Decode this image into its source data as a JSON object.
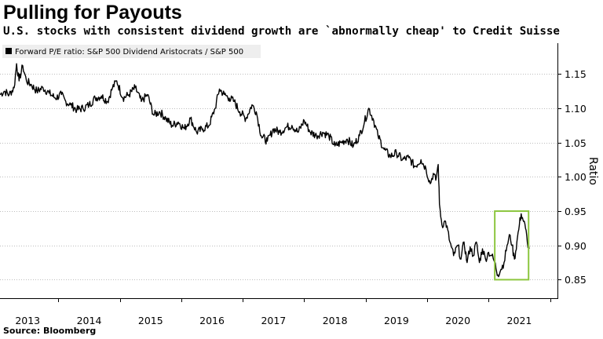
{
  "header": {
    "title": "Pulling for Payouts",
    "subtitle": "U.S. stocks with consistent dividend growth are `abnormally cheap' to Credit Suisse"
  },
  "footer": {
    "source": "Source: Bloomberg"
  },
  "colors": {
    "line": "#000000",
    "highlight_box": "#8cc63f",
    "grid": "#bdbdbd",
    "legend_bg": "#eeeeee"
  },
  "chart_data": {
    "type": "line",
    "title": "Pulling for Payouts",
    "subtitle": "U.S. stocks with consistent dividend growth are `abnormally cheap' to Credit Suisse",
    "xlabel": "",
    "ylabel": "Ratio",
    "y_axis_side": "right",
    "legend": [
      "Forward P/E ratio: S&P 500 Dividend Aristocrats / S&P 500"
    ],
    "legend_position": "top-left",
    "grid": "horizontal dotted",
    "xlim": [
      2012.55,
      2021.62
    ],
    "ylim": [
      0.823,
      1.195
    ],
    "x_tick_labels": [
      "2013",
      "2014",
      "2015",
      "2016",
      "2017",
      "2018",
      "2019",
      "2020",
      "2021"
    ],
    "x_tick_label_positions": [
      2013.0,
      2014.0,
      2015.0,
      2016.0,
      2017.0,
      2018.0,
      2019.0,
      2020.0,
      2021.0
    ],
    "x_tick_marks": [
      2013.5,
      2014.5,
      2015.5,
      2016.5,
      2017.5,
      2018.5,
      2019.5,
      2020.5,
      2021.5
    ],
    "y_ticks": [
      0.85,
      0.9,
      0.95,
      1.0,
      1.05,
      1.1,
      1.15
    ],
    "y_tick_labels": [
      "0.85",
      "0.90",
      "0.95",
      "1.00",
      "1.05",
      "1.10",
      "1.15"
    ],
    "highlight_box": {
      "x_range": [
        2020.6,
        2021.15
      ],
      "y_range": [
        0.85,
        0.95
      ]
    },
    "series": [
      {
        "name": "Forward P/E ratio: S&P 500 Dividend Aristocrats / S&P 500",
        "x": [
          2012.55,
          2012.62,
          2012.7,
          2012.78,
          2012.82,
          2012.86,
          2012.92,
          2012.98,
          2013.05,
          2013.15,
          2013.25,
          2013.35,
          2013.45,
          2013.55,
          2013.62,
          2013.7,
          2013.8,
          2013.9,
          2014.0,
          2014.1,
          2014.2,
          2014.3,
          2014.38,
          2014.45,
          2014.55,
          2014.65,
          2014.75,
          2014.85,
          2014.95,
          2015.05,
          2015.15,
          2015.25,
          2015.35,
          2015.45,
          2015.55,
          2015.65,
          2015.75,
          2015.85,
          2015.95,
          2016.05,
          2016.12,
          2016.2,
          2016.28,
          2016.36,
          2016.45,
          2016.55,
          2016.65,
          2016.72,
          2016.8,
          2016.9,
          2017.0,
          2017.1,
          2017.2,
          2017.3,
          2017.4,
          2017.5,
          2017.6,
          2017.7,
          2017.8,
          2017.9,
          2018.0,
          2018.1,
          2018.2,
          2018.3,
          2018.4,
          2018.48,
          2018.55,
          2018.62,
          2018.7,
          2018.8,
          2018.9,
          2019.0,
          2019.1,
          2019.2,
          2019.3,
          2019.4,
          2019.48,
          2019.55,
          2019.6,
          2019.64,
          2019.68,
          2019.7,
          2019.74,
          2019.8,
          2019.87,
          2019.93,
          2020.0,
          2020.05,
          2020.1,
          2020.15,
          2020.2,
          2020.25,
          2020.3,
          2020.35,
          2020.4,
          2020.45,
          2020.5,
          2020.55,
          2020.6,
          2020.65,
          2020.7,
          2020.75,
          2020.8,
          2020.85,
          2020.88,
          2020.92,
          2020.96,
          2021.0,
          2021.03,
          2021.07,
          2021.1,
          2021.13,
          2021.16
        ],
        "values": [
          1.12,
          1.125,
          1.12,
          1.13,
          1.165,
          1.14,
          1.162,
          1.14,
          1.135,
          1.125,
          1.13,
          1.122,
          1.115,
          1.12,
          1.11,
          1.105,
          1.098,
          1.1,
          1.105,
          1.115,
          1.118,
          1.11,
          1.13,
          1.14,
          1.115,
          1.12,
          1.13,
          1.11,
          1.12,
          1.09,
          1.095,
          1.085,
          1.075,
          1.08,
          1.07,
          1.085,
          1.065,
          1.07,
          1.075,
          1.1,
          1.128,
          1.12,
          1.115,
          1.11,
          1.095,
          1.085,
          1.105,
          1.095,
          1.06,
          1.052,
          1.07,
          1.065,
          1.072,
          1.075,
          1.065,
          1.082,
          1.065,
          1.06,
          1.065,
          1.06,
          1.045,
          1.05,
          1.055,
          1.045,
          1.06,
          1.08,
          1.1,
          1.085,
          1.06,
          1.04,
          1.03,
          1.035,
          1.025,
          1.028,
          1.015,
          1.025,
          1.012,
          0.99,
          1.005,
          0.995,
          1.018,
          0.96,
          0.93,
          0.935,
          0.905,
          0.885,
          0.9,
          0.88,
          0.905,
          0.875,
          0.898,
          0.885,
          0.905,
          0.875,
          0.895,
          0.88,
          0.89,
          0.885,
          0.875,
          0.857,
          0.865,
          0.875,
          0.9,
          0.915,
          0.9,
          0.88,
          0.905,
          0.93,
          0.946,
          0.935,
          0.925,
          0.905,
          0.895
        ]
      }
    ]
  }
}
